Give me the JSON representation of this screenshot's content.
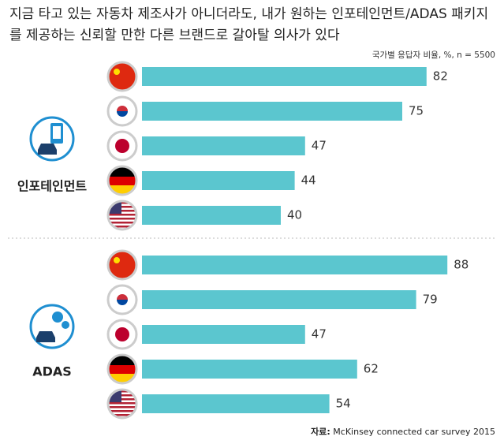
{
  "title_lines": [
    "지금 타고 있는 자동차 제조사가 아니더라도, 내가 원하는 인포테인먼트/ADAS 패키지",
    "를 제공하는 신뢰할 만한 다른 브랜드로 갈아탈 의사가 있다"
  ],
  "subtitle": "국가별 응답자 비율, %, n = 5500",
  "source_label": "자료:",
  "source": "McKinsey connected car survey 2015",
  "chart_data": [
    {
      "type": "bar",
      "label": "인포테인먼트",
      "values": [
        82,
        75,
        47,
        44,
        40
      ],
      "color": "#5bc6cf"
    },
    {
      "type": "bar",
      "label": "ADAS",
      "values": [
        88,
        79,
        47,
        62,
        54
      ],
      "color": "#5bc6cf"
    }
  ]
}
